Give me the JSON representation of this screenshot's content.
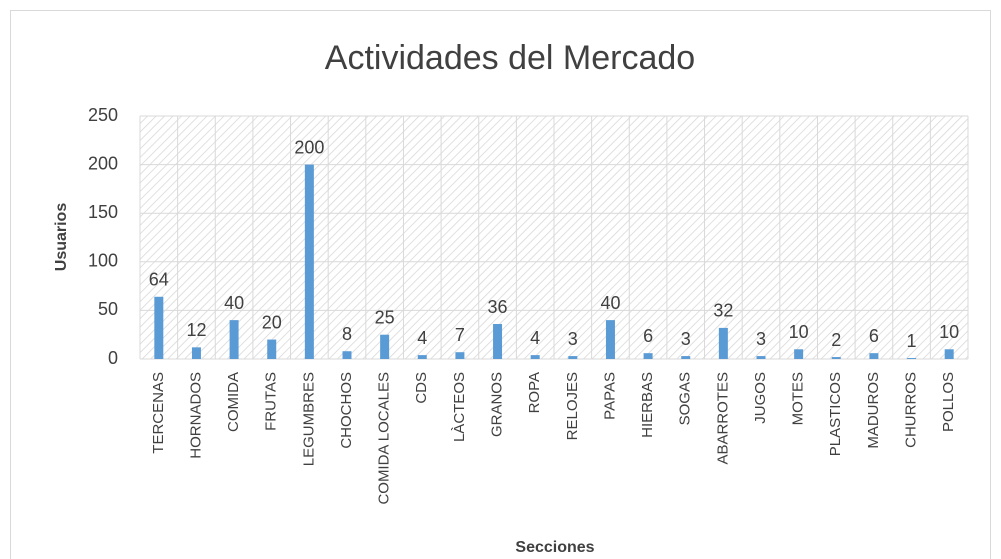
{
  "chart_data": {
    "type": "bar",
    "title": "Actividades del Mercado",
    "x_label": "Secciones",
    "y_label": "Usuarios",
    "categories": [
      "TERCENAS",
      "HORNADOS",
      "COMIDA",
      "FRUTAS",
      "LEGUMBRES",
      "CHOCHOS",
      "COMIDA LOCALES",
      "CDS",
      "LÀCTEOS",
      "GRANOS",
      "ROPA",
      "RELOJES",
      "PAPAS",
      "HIERBAS",
      "SOGAS",
      "ABARROTES",
      "JUGOS",
      "MOTES",
      "PLASTICOS",
      "MADUROS",
      "CHURROS",
      "POLLOS"
    ],
    "values": [
      64,
      12,
      40,
      20,
      200,
      8,
      25,
      4,
      7,
      36,
      4,
      3,
      40,
      6,
      3,
      32,
      3,
      10,
      2,
      6,
      1,
      10
    ],
    "color": "#5b9bd5",
    "ylim": [
      0,
      250
    ],
    "yticks": [
      0,
      50,
      100,
      150,
      200,
      250
    ],
    "grid": true
  }
}
